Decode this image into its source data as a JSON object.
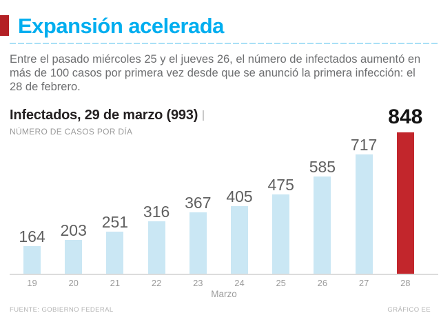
{
  "header": {
    "title": "Expansión acelerada",
    "title_color": "#00aeef",
    "accent_color": "#b32025"
  },
  "intro": {
    "lines": [
      "Entre el pasado miércoles 25 y el jueves 26, el número de infectados aumentó en",
      "más de 100 casos por primera vez desde que se anunció la primera infección: el",
      "28 de febrero."
    ]
  },
  "chart": {
    "title": "Infectados, 29 de marzo (993)",
    "subtitle": "NÚMERO DE CASOS POR DÍA"
  },
  "chart_data": {
    "type": "bar",
    "categories": [
      "19",
      "20",
      "21",
      "22",
      "23",
      "24",
      "25",
      "26",
      "27",
      "28"
    ],
    "values": [
      164,
      203,
      251,
      316,
      367,
      405,
      475,
      585,
      717,
      848
    ],
    "highlight_index": 9,
    "bar_color": "#cae7f4",
    "highlight_color": "#c2262c",
    "label_color": "#606060",
    "highlight_label_color": "#141414",
    "title": "Infectados, 29 de marzo (993)",
    "subtitle": "NÚMERO DE CASOS POR DÍA",
    "xlabel": "Marzo",
    "ylabel": "",
    "ylim": [
      0,
      848
    ],
    "grid": false,
    "legend": false
  },
  "footer": {
    "source": "FUENTE: GOBIERNO FEDERAL",
    "credit": "GRÁFICO EE"
  }
}
